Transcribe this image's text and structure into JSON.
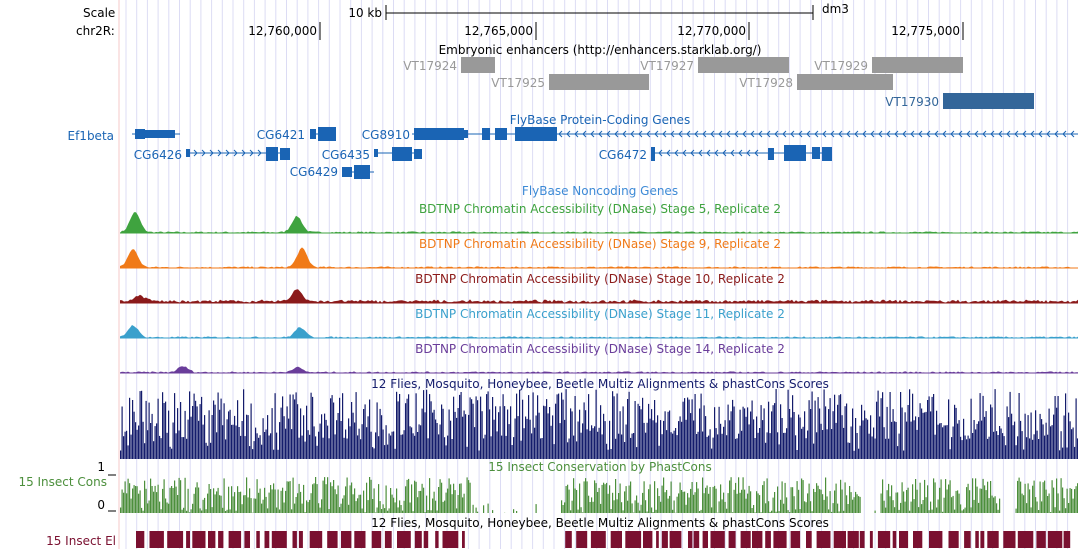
{
  "ruler": {
    "scale_label": "Scale",
    "chrom_label": "chr2R:",
    "scale_bar_label": "10 kb",
    "assembly": "dm3",
    "positions": [
      "12,760,000",
      "12,765,000",
      "12,770,000",
      "12,775,000"
    ]
  },
  "tracks": {
    "enhancers": {
      "title": "Embryonic enhancers (http://enhancers.starklab.org/)",
      "items": [
        {
          "name": "VT17924",
          "color": "#999999"
        },
        {
          "name": "VT17925",
          "color": "#999999"
        },
        {
          "name": "VT17927",
          "color": "#999999"
        },
        {
          "name": "VT17928",
          "color": "#999999"
        },
        {
          "name": "VT17929",
          "color": "#999999"
        },
        {
          "name": "VT17930",
          "color": "#336699"
        }
      ]
    },
    "genes": {
      "title": "FlyBase Protein-Coding Genes",
      "left_label": "Ef1beta",
      "color": "#1a64b4",
      "names": [
        "CG6426",
        "CG6421",
        "CG8910",
        "CG6435",
        "CG6429",
        "CG6472"
      ]
    },
    "noncoding": {
      "title": "FlyBase Noncoding Genes",
      "color": "#3d8ad6"
    },
    "dnase": [
      {
        "title": "BDTNP Chromatin Accessibility (DNase) Stage 5, Replicate 2",
        "color": "#3fa33f"
      },
      {
        "title": "BDTNP Chromatin Accessibility (DNase) Stage 9, Replicate 2",
        "color": "#f07a18"
      },
      {
        "title": "BDTNP Chromatin Accessibility (DNase) Stage 10, Replicate 2",
        "color": "#8b1a1a"
      },
      {
        "title": "BDTNP Chromatin Accessibility (DNase) Stage 11, Replicate 2",
        "color": "#3aa0cc"
      },
      {
        "title": "BDTNP Chromatin Accessibility (DNase) Stage 14, Replicate 2",
        "color": "#6a3d9a"
      }
    ],
    "multiz": {
      "title": "12 Flies, Mosquito, Honeybee, Beetle Multiz Alignments & phastCons Scores",
      "color": "#141c6c"
    },
    "cons": {
      "title": "15 Insect Conservation by PhastCons",
      "left_label": "15 Insect Cons",
      "axis_top": "1",
      "axis_bottom": "0",
      "color": "#4c8f3c"
    },
    "el": {
      "title": "12 Flies, Mosquito, Honeybee, Beetle Multiz Alignments & phastCons Scores",
      "left_label": "15 Insect El",
      "color": "#7a1030"
    }
  }
}
